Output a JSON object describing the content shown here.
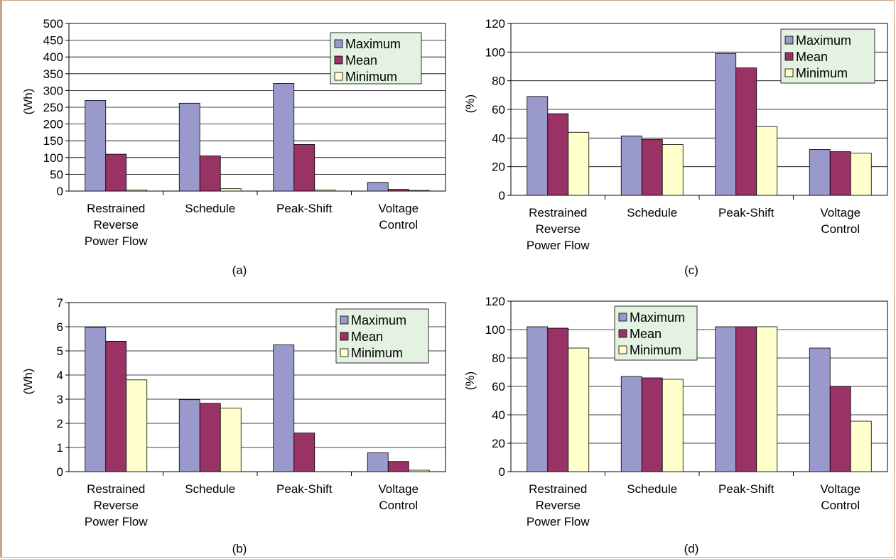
{
  "colors": {
    "maximum": "#9999cc",
    "mean": "#993366",
    "minimum": "#ffffcc",
    "legend_bg": "#e4f2e2",
    "frame": "#c8a58a"
  },
  "chart_data": [
    {
      "id": "a",
      "type": "bar",
      "caption": "(a)",
      "ylabel": "(Wh)",
      "xlabel": "",
      "title": "",
      "ylim": [
        0,
        500
      ],
      "ytick_step": 50,
      "grid": true,
      "legend": "top-right",
      "categories": [
        [
          "Restrained",
          "Reverse",
          "Power Flow"
        ],
        [
          "Schedule"
        ],
        [
          "Peak-Shift"
        ],
        [
          "Voltage",
          "Control"
        ]
      ],
      "series": [
        {
          "name": "Maximum",
          "values": [
            270,
            262,
            321,
            26
          ]
        },
        {
          "name": "Mean",
          "values": [
            110,
            105,
            139,
            5
          ]
        },
        {
          "name": "Minimum",
          "values": [
            3,
            7,
            3,
            2
          ]
        }
      ]
    },
    {
      "id": "b",
      "type": "bar",
      "caption": "(b)",
      "ylabel": "(Wh)",
      "xlabel": "",
      "title": "",
      "ylim": [
        0,
        7
      ],
      "ytick_step": 1,
      "grid": true,
      "legend": "top-right",
      "categories": [
        [
          "Restrained",
          "Reverse",
          "Power Flow"
        ],
        [
          "Schedule"
        ],
        [
          "Peak-Shift"
        ],
        [
          "Voltage",
          "Control"
        ]
      ],
      "series": [
        {
          "name": "Maximum",
          "values": [
            5.97,
            2.98,
            5.25,
            0.78
          ]
        },
        {
          "name": "Mean",
          "values": [
            5.4,
            2.83,
            1.6,
            0.42
          ]
        },
        {
          "name": "Minimum",
          "values": [
            3.8,
            2.63,
            0,
            0.06
          ]
        }
      ]
    },
    {
      "id": "c",
      "type": "bar",
      "caption": "(c)",
      "ylabel": "(%)",
      "xlabel": "",
      "title": "",
      "ylim": [
        0,
        120
      ],
      "ytick_step": 20,
      "grid": true,
      "legend": "top-right",
      "categories": [
        [
          "Restrained",
          "Reverse",
          "Power Flow"
        ],
        [
          "Schedule"
        ],
        [
          "Peak-Shift"
        ],
        [
          "Voltage",
          "Control"
        ]
      ],
      "series": [
        {
          "name": "Maximum",
          "values": [
            69,
            41.5,
            99,
            32
          ]
        },
        {
          "name": "Mean",
          "values": [
            57,
            39,
            89,
            30.5
          ]
        },
        {
          "name": "Minimum",
          "values": [
            44,
            35.5,
            48,
            29.5
          ]
        }
      ]
    },
    {
      "id": "d",
      "type": "bar",
      "caption": "(d)",
      "ylabel": "(%)",
      "xlabel": "",
      "title": "",
      "ylim": [
        0,
        120
      ],
      "ytick_step": 20,
      "grid": true,
      "legend": "top-left",
      "categories": [
        [
          "Restrained",
          "Reverse",
          "Power Flow"
        ],
        [
          "Schedule"
        ],
        [
          "Peak-Shift"
        ],
        [
          "Voltage",
          "Control"
        ]
      ],
      "series": [
        {
          "name": "Maximum",
          "values": [
            102,
            67,
            102,
            87
          ]
        },
        {
          "name": "Mean",
          "values": [
            101,
            66,
            102,
            60
          ]
        },
        {
          "name": "Minimum",
          "values": [
            87,
            65,
            102,
            35.5
          ]
        }
      ]
    }
  ]
}
